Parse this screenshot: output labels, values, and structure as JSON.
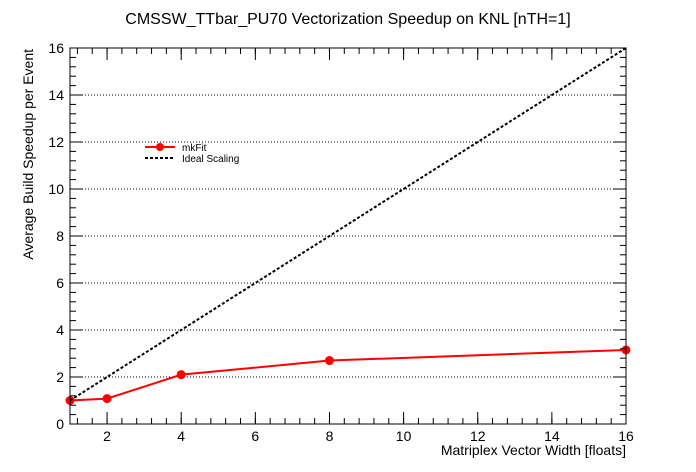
{
  "chart_data": {
    "type": "line",
    "title": "CMSSW_TTbar_PU70 Vectorization Speedup on KNL [nTH=1]",
    "xlabel": "Matriplex Vector Width [floats]",
    "ylabel": "Average Build Speedup per Event",
    "xlim": [
      1,
      16
    ],
    "ylim": [
      0,
      16
    ],
    "xticks": [
      2,
      4,
      6,
      8,
      10,
      12,
      14,
      16
    ],
    "yticks": [
      0,
      2,
      4,
      6,
      8,
      10,
      12,
      14,
      16
    ],
    "grid": "horizontal dotted",
    "legend_position": "upper-left",
    "series": [
      {
        "name": "mkFit",
        "x": [
          1,
          2,
          4,
          8,
          16
        ],
        "y": [
          1.0,
          1.08,
          2.1,
          2.7,
          3.15
        ],
        "color": "#ff0000",
        "style": "solid",
        "markers": true
      },
      {
        "name": "Ideal Scaling",
        "x": [
          1,
          16
        ],
        "y": [
          1,
          16
        ],
        "color": "#000000",
        "style": "dotted",
        "markers": false
      }
    ]
  }
}
